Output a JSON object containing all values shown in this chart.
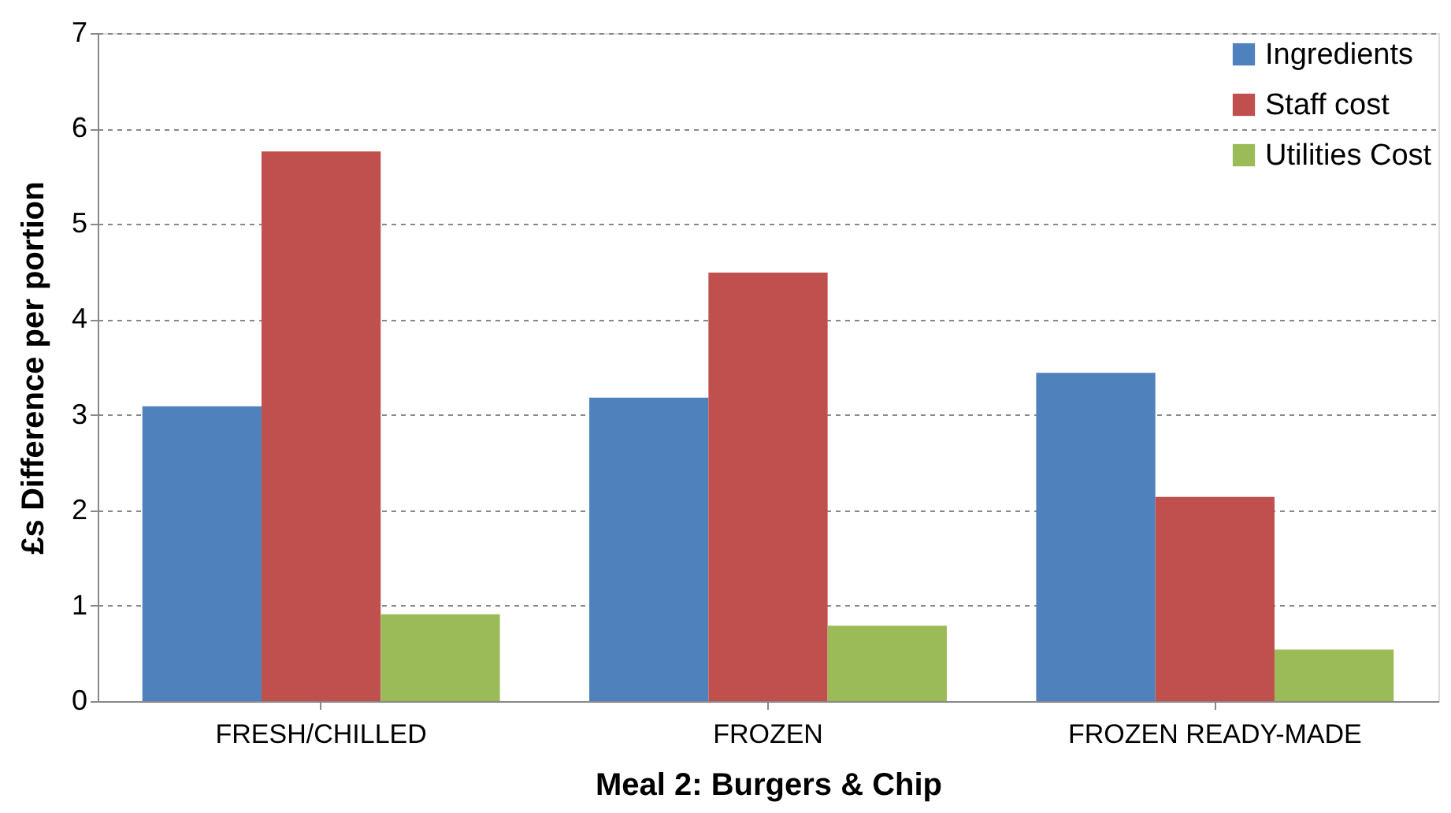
{
  "chart_data": {
    "type": "bar",
    "xlabel": "Meal 2: Burgers & Chip",
    "ylabel": "£s Difference per portion",
    "categories": [
      "FRESH/CHILLED",
      "FROZEN",
      "FROZEN READY-MADE"
    ],
    "series": [
      {
        "name": "Ingredients",
        "color": "#4f81bd",
        "values": [
          3.09,
          3.18,
          3.44
        ]
      },
      {
        "name": "Staff cost",
        "color": "#c0504d",
        "values": [
          5.76,
          4.49,
          2.14
        ]
      },
      {
        "name": "Utilities Cost",
        "color": "#9bbb59",
        "values": [
          0.91,
          0.79,
          0.54
        ]
      }
    ],
    "ylim": [
      0,
      7
    ],
    "yticks": [
      0,
      1,
      2,
      3,
      4,
      5,
      6,
      7
    ],
    "grid": "y",
    "legend": "top right"
  }
}
